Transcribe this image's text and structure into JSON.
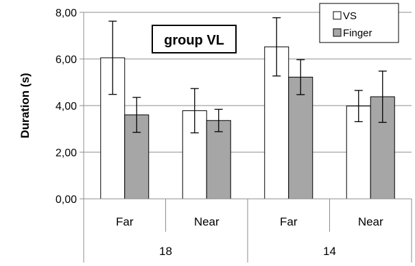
{
  "chart_data": {
    "type": "bar",
    "title": "group VL",
    "ylabel": "Duration (s)",
    "xlabel": "",
    "ylim": [
      0,
      8
    ],
    "yticks": [
      0,
      2,
      4,
      6,
      8
    ],
    "ytick_labels": [
      "0,00",
      "2,00",
      "4,00",
      "6,00",
      "8,00"
    ],
    "categories": [
      "Far",
      "Near",
      "Far",
      "Near"
    ],
    "groups": [
      {
        "label": "18",
        "categories": [
          "Far",
          "Near"
        ]
      },
      {
        "label": "14",
        "categories": [
          "Far",
          "Near"
        ]
      }
    ],
    "series": [
      {
        "name": "VS",
        "color": "#ffffff",
        "values": [
          6.05,
          3.78,
          6.52,
          3.98
        ],
        "err": [
          1.57,
          0.95,
          1.25,
          0.67
        ]
      },
      {
        "name": "Finger",
        "color": "#a6a6a6",
        "values": [
          3.6,
          3.36,
          5.22,
          4.38
        ],
        "err": [
          0.75,
          0.48,
          0.75,
          1.1
        ]
      }
    ],
    "grid": true,
    "legend_position": "top-right"
  }
}
